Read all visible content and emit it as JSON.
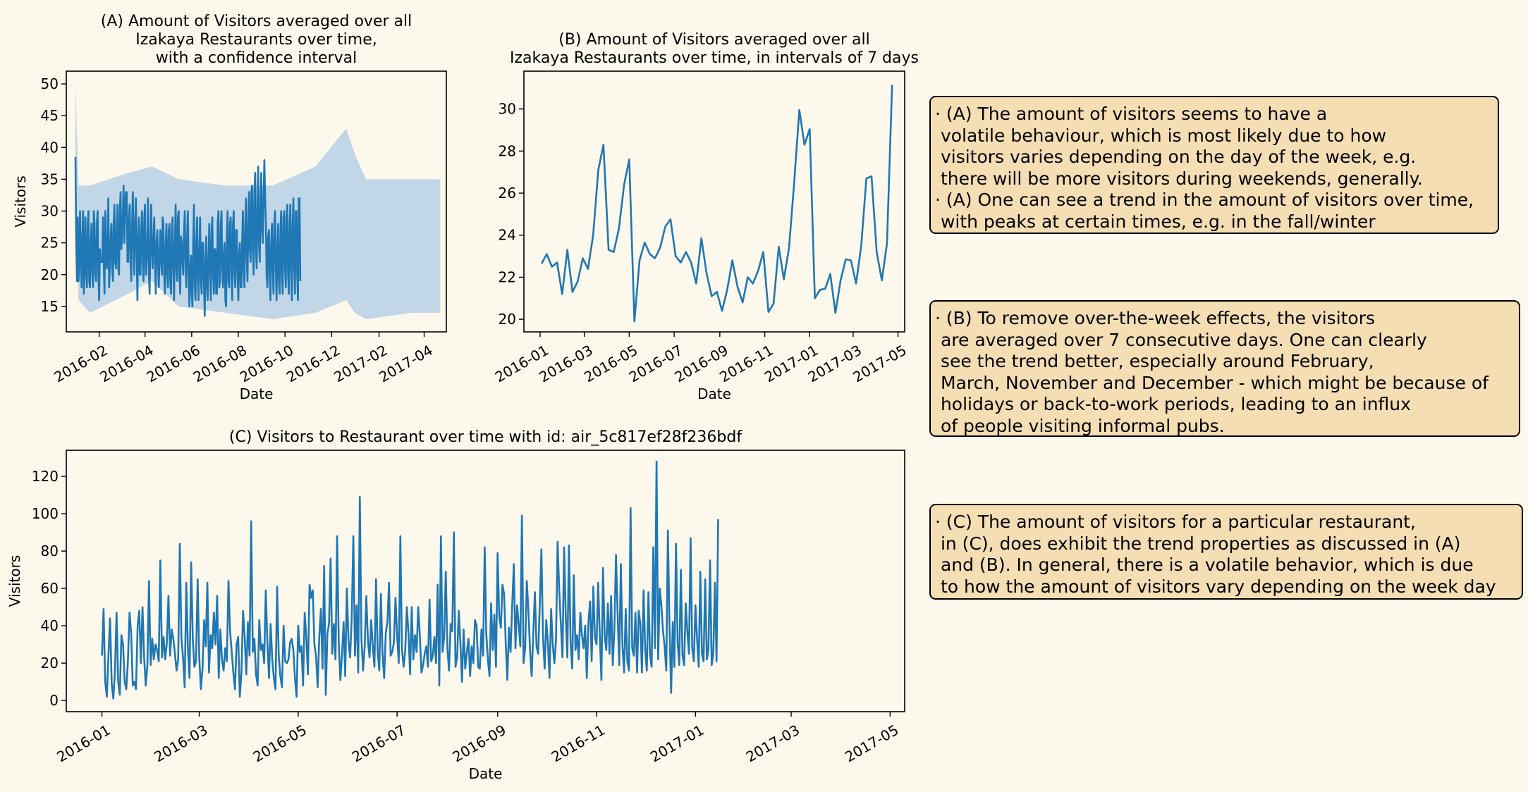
{
  "colors": {
    "line": "#1f77b4",
    "band": "#a6c8e4",
    "background": "#fdf8ec",
    "note_bg": "#f5deb3"
  },
  "notes": {
    "a": "· (A) The amount of visitors seems to have a\n volatile behaviour, which is most likely due to how\n visitors varies depending on the day of the week, e.g.\n there will be more visitors during weekends, generally.\n· (A) One can see a trend in the amount of visitors over time,\n with peaks at certain times, e.g. in the fall/winter",
    "b": "· (B) To remove over-the-week effects, the visitors\n are averaged over 7 consecutive days. One can clearly\n see the trend better, especially around February,\n March, November and December - which might be because of\n holidays or back-to-work periods, leading to an influx\n of people visiting informal pubs.",
    "c": "· (C) The amount of visitors for a particular restaurant,\n in (C), does exhibit the trend properties as discussed in (A)\n and (B). In general, there is a volatile behavior, which is due\n to how the amount of visitors vary depending on the week day"
  },
  "chart_data": [
    {
      "id": "A",
      "type": "line",
      "title_lines": [
        "(A) Amount of Visitors averaged over all",
        "Izakaya Restaurants over time,",
        "with a confidence interval"
      ],
      "xlabel": "Date",
      "ylabel": "Visitors",
      "x_range": [
        "2015-12-20",
        "2017-04-30"
      ],
      "xticks": [
        "2016-02",
        "2016-04",
        "2016-06",
        "2016-08",
        "2016-10",
        "2016-12",
        "2017-02",
        "2017-04"
      ],
      "ylim": [
        11,
        52
      ],
      "yticks": [
        15,
        20,
        25,
        30,
        35,
        40,
        45,
        50
      ],
      "grid": false,
      "series": [
        {
          "x_start": "2016-01-01",
          "values": [
            38.5,
            25,
            19,
            29,
            19,
            22,
            30,
            23,
            18,
            26,
            30,
            17,
            20,
            29,
            21,
            18,
            28,
            30,
            19,
            18,
            25,
            28,
            20,
            18,
            30,
            28,
            20,
            19,
            28,
            30,
            20,
            16,
            24,
            22,
            22,
            22,
            29,
            22,
            17,
            30,
            23,
            21,
            26,
            32,
            18,
            21,
            26,
            28,
            21,
            19,
            28,
            31,
            22,
            21,
            27,
            31,
            21,
            20,
            30,
            33,
            24,
            26,
            30,
            34,
            25,
            30,
            33,
            33,
            22,
            22,
            29,
            31,
            22,
            19,
            28,
            33,
            25,
            20,
            28,
            32,
            23,
            16,
            25,
            29,
            20,
            20,
            27,
            30,
            22,
            19,
            29,
            31,
            20,
            22,
            25,
            32,
            20,
            17,
            25,
            31,
            24,
            21,
            25,
            29,
            22,
            17,
            25,
            27,
            22,
            18,
            23,
            27,
            22,
            20,
            29,
            28,
            20,
            17,
            25,
            28,
            20,
            18,
            27,
            28,
            19,
            17,
            27,
            29,
            21,
            16,
            25,
            31,
            21,
            19,
            29,
            30,
            20,
            17,
            26,
            25,
            22,
            20,
            27,
            30,
            21,
            18,
            26,
            30,
            21,
            15,
            21,
            23,
            17,
            15,
            25,
            31,
            18,
            16,
            25,
            29,
            20,
            16,
            24,
            29,
            19,
            17,
            25,
            25,
            19,
            13.5,
            22,
            26,
            18,
            16,
            23,
            28,
            21,
            16,
            27,
            29,
            20,
            17,
            24,
            24,
            17,
            17,
            28,
            30,
            18,
            19,
            28,
            30,
            21,
            18,
            23,
            25,
            16,
            15,
            26,
            30,
            19,
            18,
            28,
            29,
            20,
            16,
            28,
            30,
            20,
            18,
            27,
            27,
            20,
            16,
            23,
            25,
            18,
            18,
            25,
            30,
            21,
            18,
            28,
            32,
            23,
            19,
            28,
            33,
            24,
            22,
            33,
            34,
            24,
            20,
            33,
            36,
            24,
            21,
            30,
            37,
            25,
            22,
            31,
            36,
            27,
            25,
            32,
            38,
            32,
            28,
            20,
            18,
            26,
            27,
            20,
            16,
            25,
            28,
            21,
            17,
            28,
            30,
            21,
            16,
            24,
            28,
            19,
            17,
            27,
            30,
            20,
            17,
            29,
            30,
            21,
            18,
            29,
            31,
            20,
            17,
            28,
            31,
            21,
            16,
            28,
            32,
            21,
            17,
            30,
            30,
            20,
            16,
            32,
            32,
            19
          ]
        }
      ],
      "band": [
        {
          "x": "2016-01-01",
          "lower": 31,
          "upper": 50
        },
        {
          "x": "2016-01-05",
          "lower": 16,
          "upper": 34
        },
        {
          "x": "2016-01-20",
          "lower": 14,
          "upper": 34
        },
        {
          "x": "2016-03-10",
          "lower": 17,
          "upper": 36
        },
        {
          "x": "2016-04-10",
          "lower": 19,
          "upper": 37
        },
        {
          "x": "2016-05-15",
          "lower": 15,
          "upper": 35
        },
        {
          "x": "2016-07-15",
          "lower": 14,
          "upper": 34
        },
        {
          "x": "2016-09-15",
          "lower": 13,
          "upper": 34
        },
        {
          "x": "2016-11-10",
          "lower": 14,
          "upper": 37
        },
        {
          "x": "2016-12-20",
          "lower": 16,
          "upper": 43
        },
        {
          "x": "2016-12-31",
          "lower": 14,
          "upper": 39
        },
        {
          "x": "2017-01-15",
          "lower": 13,
          "upper": 35
        },
        {
          "x": "2017-03-15",
          "lower": 14,
          "upper": 35
        },
        {
          "x": "2017-04-22",
          "lower": 14,
          "upper": 35
        }
      ]
    },
    {
      "id": "B",
      "type": "line",
      "title_lines": [
        "(B) Amount of Visitors averaged over all",
        "Izakaya Restaurants over time, in intervals of 7 days"
      ],
      "xlabel": "Date",
      "ylabel": "",
      "x_range": [
        "2015-12-10",
        "2017-05-10"
      ],
      "xticks": [
        "2016-01",
        "2016-03",
        "2016-05",
        "2016-07",
        "2016-09",
        "2016-11",
        "2017-01",
        "2017-03",
        "2017-05"
      ],
      "ylim": [
        19.4,
        31.8
      ],
      "yticks": [
        20,
        22,
        24,
        26,
        28,
        30
      ],
      "grid": false,
      "series": [
        {
          "x_start": "2016-01-03",
          "step_days": 7,
          "values": [
            22.65,
            23.1,
            22.5,
            22.7,
            21.2,
            23.3,
            21.3,
            21.8,
            22.9,
            22.4,
            24.0,
            27.1,
            28.3,
            23.3,
            23.2,
            24.3,
            26.4,
            27.6,
            19.9,
            22.8,
            23.65,
            23.1,
            22.9,
            23.4,
            24.4,
            24.75,
            23.0,
            22.7,
            23.2,
            22.7,
            21.7,
            23.85,
            22.2,
            21.1,
            21.3,
            20.4,
            21.4,
            22.8,
            21.55,
            20.8,
            22.0,
            21.7,
            22.3,
            23.2,
            20.35,
            20.75,
            23.45,
            21.9,
            23.4,
            26.5,
            29.95,
            28.3,
            29.05,
            21.0,
            21.4,
            21.45,
            22.15,
            20.3,
            21.85,
            22.85,
            22.8,
            21.7,
            23.5,
            26.7,
            26.8,
            23.2,
            21.85,
            23.6,
            31.15
          ]
        }
      ]
    },
    {
      "id": "C",
      "type": "line",
      "title_lines": [
        "(C) Visitors to Restaurant over time with id: air_5c817ef28f236bdf"
      ],
      "xlabel": "Date",
      "ylabel": "Visitors",
      "x_range": [
        "2015-12-10",
        "2017-05-10"
      ],
      "xticks": [
        "2016-01",
        "2016-03",
        "2016-05",
        "2016-07",
        "2016-09",
        "2016-11",
        "2017-01",
        "2017-03",
        "2017-05"
      ],
      "ylim": [
        -6,
        134
      ],
      "yticks": [
        0,
        20,
        40,
        60,
        80,
        100,
        120
      ],
      "grid": false,
      "series": [
        {
          "x_start": "2016-01-01",
          "values": [
            24,
            49,
            10,
            2,
            24,
            44,
            9,
            1,
            15,
            47,
            10,
            3,
            35,
            30,
            10,
            6,
            21,
            47,
            36,
            8,
            10,
            6,
            40,
            48,
            20,
            50,
            23,
            8,
            19,
            64,
            19,
            33,
            22,
            30,
            27,
            21,
            75,
            23,
            34,
            22,
            31,
            56,
            24,
            38,
            33,
            25,
            16,
            22,
            84,
            33,
            23,
            7,
            63,
            28,
            12,
            74,
            33,
            18,
            21,
            65,
            23,
            6,
            17,
            43,
            29,
            63,
            15,
            35,
            28,
            47,
            30,
            56,
            12,
            38,
            22,
            16,
            28,
            21,
            64,
            37,
            26,
            15,
            6,
            30,
            34,
            2,
            15,
            48,
            34,
            14,
            42,
            24,
            96,
            26,
            33,
            14,
            8,
            43,
            27,
            30,
            20,
            59,
            31,
            12,
            41,
            22,
            12,
            6,
            61,
            24,
            13,
            7,
            40,
            21,
            20,
            22,
            31,
            33,
            27,
            12,
            2,
            40,
            26,
            29,
            8,
            47,
            34,
            14,
            62,
            55,
            59,
            30,
            24,
            7,
            34,
            49,
            17,
            72,
            3,
            36,
            41,
            76,
            25,
            41,
            22,
            88,
            31,
            11,
            24,
            42,
            13,
            60,
            32,
            23,
            44,
            88,
            24,
            51,
            15,
            109,
            33,
            16,
            29,
            56,
            32,
            23,
            43,
            29,
            18,
            65,
            26,
            16,
            57,
            25,
            12,
            36,
            42,
            63,
            24,
            26,
            31,
            55,
            35,
            20,
            88,
            27,
            18,
            27,
            50,
            36,
            14,
            50,
            22,
            35,
            26,
            50,
            35,
            15,
            19,
            25,
            29,
            18,
            54,
            21,
            24,
            34,
            20,
            62,
            8,
            88,
            26,
            34,
            69,
            28,
            16,
            41,
            37,
            90,
            18,
            23,
            48,
            31,
            10,
            38,
            17,
            26,
            33,
            13,
            29,
            20,
            43,
            40,
            18,
            17,
            38,
            24,
            82,
            36,
            22,
            13,
            52,
            27,
            46,
            18,
            79,
            45,
            39,
            62,
            57,
            31,
            11,
            39,
            26,
            51,
            73,
            28,
            51,
            41,
            29,
            99,
            20,
            28,
            64,
            48,
            27,
            13,
            36,
            58,
            29,
            25,
            51,
            81,
            34,
            17,
            43,
            31,
            12,
            49,
            30,
            20,
            32,
            85,
            59,
            41,
            23,
            82,
            46,
            23,
            83,
            31,
            17,
            67,
            27,
            35,
            22,
            47,
            35,
            28,
            40,
            12,
            42,
            53,
            21,
            61,
            34,
            30,
            63,
            35,
            11,
            71,
            35,
            27,
            52,
            25,
            56,
            19,
            38,
            78,
            47,
            19,
            73,
            29,
            15,
            49,
            21,
            16,
            103,
            28,
            24,
            47,
            15,
            48,
            41,
            15,
            59,
            27,
            16,
            58,
            24,
            18,
            82,
            28,
            128,
            22,
            60,
            51,
            37,
            29,
            16,
            91,
            39,
            4,
            42,
            18,
            84,
            31,
            19,
            70,
            24,
            19,
            52,
            37,
            25,
            87,
            28,
            21,
            51,
            33,
            18,
            69,
            25,
            21,
            65,
            22,
            27,
            75,
            19,
            25,
            63,
            21,
            97
          ]
        }
      ]
    }
  ]
}
